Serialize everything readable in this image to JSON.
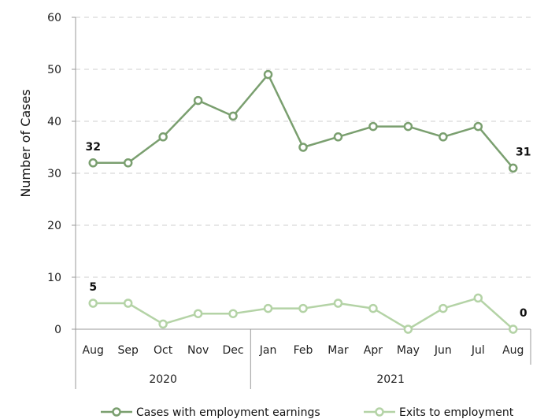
{
  "chart_data": {
    "type": "line",
    "ylabel": "Number of Cases",
    "ylim": [
      0,
      60
    ],
    "yticks": [
      0,
      10,
      20,
      30,
      40,
      50,
      60
    ],
    "grid": true,
    "legend_position": "bottom",
    "categories": [
      "Aug",
      "Sep",
      "Oct",
      "Nov",
      "Dec",
      "Jan",
      "Feb",
      "Mar",
      "Apr",
      "May",
      "Jun",
      "Jul",
      "Aug"
    ],
    "year_groups": [
      {
        "label": "2020",
        "count": 5
      },
      {
        "label": "2021",
        "count": 8
      }
    ],
    "series": [
      {
        "name": "Cases with employment earnings",
        "values": [
          32,
          32,
          37,
          44,
          41,
          49,
          35,
          37,
          39,
          39,
          37,
          39,
          31
        ],
        "color": "#7a9f6f",
        "labels": [
          {
            "index": 0,
            "text": "32"
          },
          {
            "index": 12,
            "text": "31"
          }
        ]
      },
      {
        "name": "Exits to employment",
        "values": [
          5,
          5,
          1,
          3,
          3,
          4,
          4,
          5,
          4,
          0,
          4,
          6,
          0
        ],
        "color": "#b4d3a6",
        "labels": [
          {
            "index": 0,
            "text": "5"
          },
          {
            "index": 12,
            "text": "0"
          }
        ]
      }
    ]
  }
}
